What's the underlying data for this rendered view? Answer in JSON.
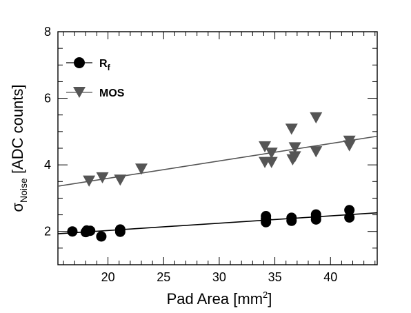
{
  "chart_data": {
    "type": "scatter",
    "title": "",
    "xlabel_main": "Pad Area [mm",
    "xlabel_sup": "2",
    "xlabel_tail": "]",
    "ylabel_main": "σ",
    "ylabel_sub": "Noise",
    "ylabel_tail": " [ADC counts]",
    "xlim": [
      15.5,
      44.2
    ],
    "ylim": [
      1.0,
      8.0
    ],
    "xticks": [
      20,
      25,
      30,
      35,
      40
    ],
    "yticks": [
      2,
      4,
      6,
      8
    ],
    "legend_position": "top-left",
    "grid": false,
    "series": [
      {
        "name": "R",
        "name_sub": "f",
        "marker": "circle",
        "color": "#000000",
        "fit_line": {
          "x": [
            15.5,
            44.2
          ],
          "y": [
            1.93,
            2.56
          ]
        },
        "points": [
          {
            "x": 16.8,
            "y": 2.0
          },
          {
            "x": 18.0,
            "y": 1.98
          },
          {
            "x": 18.1,
            "y": 2.03
          },
          {
            "x": 18.4,
            "y": 2.02
          },
          {
            "x": 19.4,
            "y": 1.85
          },
          {
            "x": 21.1,
            "y": 1.99
          },
          {
            "x": 21.1,
            "y": 2.06
          },
          {
            "x": 34.2,
            "y": 2.28
          },
          {
            "x": 34.2,
            "y": 2.38
          },
          {
            "x": 34.2,
            "y": 2.46
          },
          {
            "x": 36.5,
            "y": 2.32
          },
          {
            "x": 36.5,
            "y": 2.41
          },
          {
            "x": 38.7,
            "y": 2.36
          },
          {
            "x": 38.7,
            "y": 2.44
          },
          {
            "x": 38.7,
            "y": 2.51
          },
          {
            "x": 41.7,
            "y": 2.42
          },
          {
            "x": 41.7,
            "y": 2.64
          }
        ]
      },
      {
        "name": "MOS",
        "marker": "triangle-down",
        "color": "#555555",
        "fit_line": {
          "x": [
            15.5,
            44.2
          ],
          "y": [
            3.36,
            4.86
          ]
        },
        "points": [
          {
            "x": 18.3,
            "y": 3.52
          },
          {
            "x": 19.5,
            "y": 3.62
          },
          {
            "x": 21.1,
            "y": 3.55
          },
          {
            "x": 23.0,
            "y": 3.88
          },
          {
            "x": 34.1,
            "y": 4.55
          },
          {
            "x": 34.1,
            "y": 4.08
          },
          {
            "x": 34.7,
            "y": 4.36
          },
          {
            "x": 34.7,
            "y": 4.08
          },
          {
            "x": 36.5,
            "y": 5.08
          },
          {
            "x": 36.6,
            "y": 4.16
          },
          {
            "x": 36.8,
            "y": 4.52
          },
          {
            "x": 36.8,
            "y": 4.25
          },
          {
            "x": 38.7,
            "y": 5.42
          },
          {
            "x": 38.7,
            "y": 4.4
          },
          {
            "x": 41.7,
            "y": 4.72
          },
          {
            "x": 41.7,
            "y": 4.58
          }
        ]
      }
    ]
  }
}
